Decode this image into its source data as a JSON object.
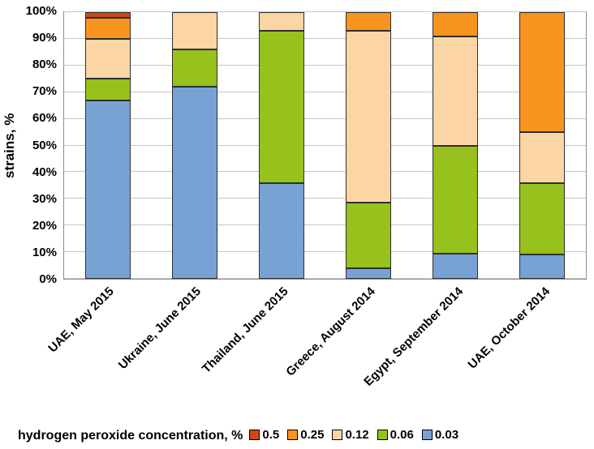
{
  "chart_data": {
    "type": "bar",
    "subtype": "stacked-100-percent",
    "title": "",
    "xlabel": "",
    "ylabel": "strains, %",
    "ylim": [
      0,
      100
    ],
    "ytick_step": 10,
    "ytick_labels": [
      "0%",
      "10%",
      "20%",
      "30%",
      "40%",
      "50%",
      "60%",
      "70%",
      "80%",
      "90%",
      "100%"
    ],
    "grid": true,
    "categories": [
      "UAE, May 2015",
      "Ukraine, June 2015",
      "Thailand, June 2015",
      "Greece, August 2014",
      "Egypt, September 2014",
      "UAE, October 2014"
    ],
    "series": [
      {
        "name": "0.03",
        "color": "#78a2d4",
        "values": [
          67,
          72,
          36,
          4,
          9.5,
          9
        ]
      },
      {
        "name": "0.06",
        "color": "#97c11c",
        "values": [
          8,
          14,
          57,
          24.5,
          40.5,
          27
        ]
      },
      {
        "name": "0.12",
        "color": "#fcd5a4",
        "values": [
          15,
          14,
          7,
          64.5,
          41,
          19
        ]
      },
      {
        "name": "0.25",
        "color": "#f79420",
        "values": [
          8,
          0,
          0,
          7,
          9,
          45
        ]
      },
      {
        "name": "0.5",
        "color": "#cf4913",
        "values": [
          2,
          0,
          0,
          0,
          0,
          0
        ]
      }
    ],
    "legend_title": "hydrogen peroxide concentration, %",
    "legend_order": [
      "0.5",
      "0.25",
      "0.12",
      "0.06",
      "0.03"
    ],
    "legend_position": "bottom"
  }
}
